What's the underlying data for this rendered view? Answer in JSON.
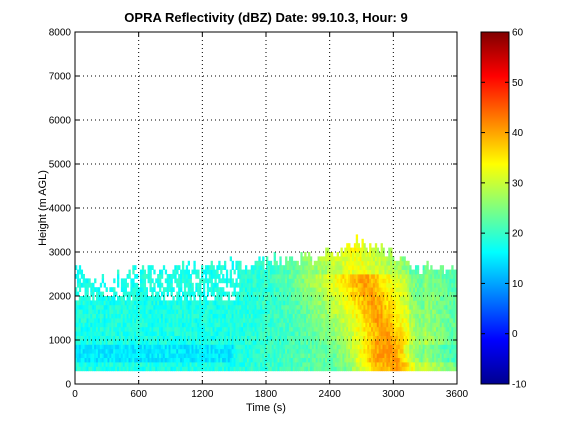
{
  "chart_data": {
    "type": "heatmap",
    "title": "OPRA Reflectivity (dBZ)  Date: 99.10.3, Hour: 9",
    "xlabel": "Time (s)",
    "ylabel": "Height (m AGL)",
    "xlim": [
      0,
      3600
    ],
    "ylim": [
      0,
      8000
    ],
    "x_ticks": [
      "0",
      "600",
      "1200",
      "1800",
      "2400",
      "3000",
      "3600"
    ],
    "y_ticks": [
      "0",
      "1000",
      "2000",
      "3000",
      "4000",
      "5000",
      "6000",
      "7000",
      "8000"
    ],
    "grid": true,
    "colorbar": {
      "range": [
        -10,
        60
      ],
      "ticks": [
        "-10",
        "0",
        "10",
        "20",
        "30",
        "40",
        "50",
        "60"
      ],
      "colormap": "jet"
    },
    "echo_base_m": 300,
    "echo_top_profile": [
      {
        "t": 0,
        "h": 2500
      },
      {
        "t": 300,
        "h": 2200
      },
      {
        "t": 600,
        "h": 2600
      },
      {
        "t": 1200,
        "h": 2600
      },
      {
        "t": 1550,
        "h": 2700
      },
      {
        "t": 2500,
        "h": 2900
      },
      {
        "t": 2650,
        "h": 3200
      },
      {
        "t": 2900,
        "h": 3000
      },
      {
        "t": 3300,
        "h": 2600
      },
      {
        "t": 3600,
        "h": 2500
      }
    ],
    "max_reflectivity_dbz": 42,
    "max_reflectivity_at": {
      "t": 2800,
      "h": 600
    }
  }
}
